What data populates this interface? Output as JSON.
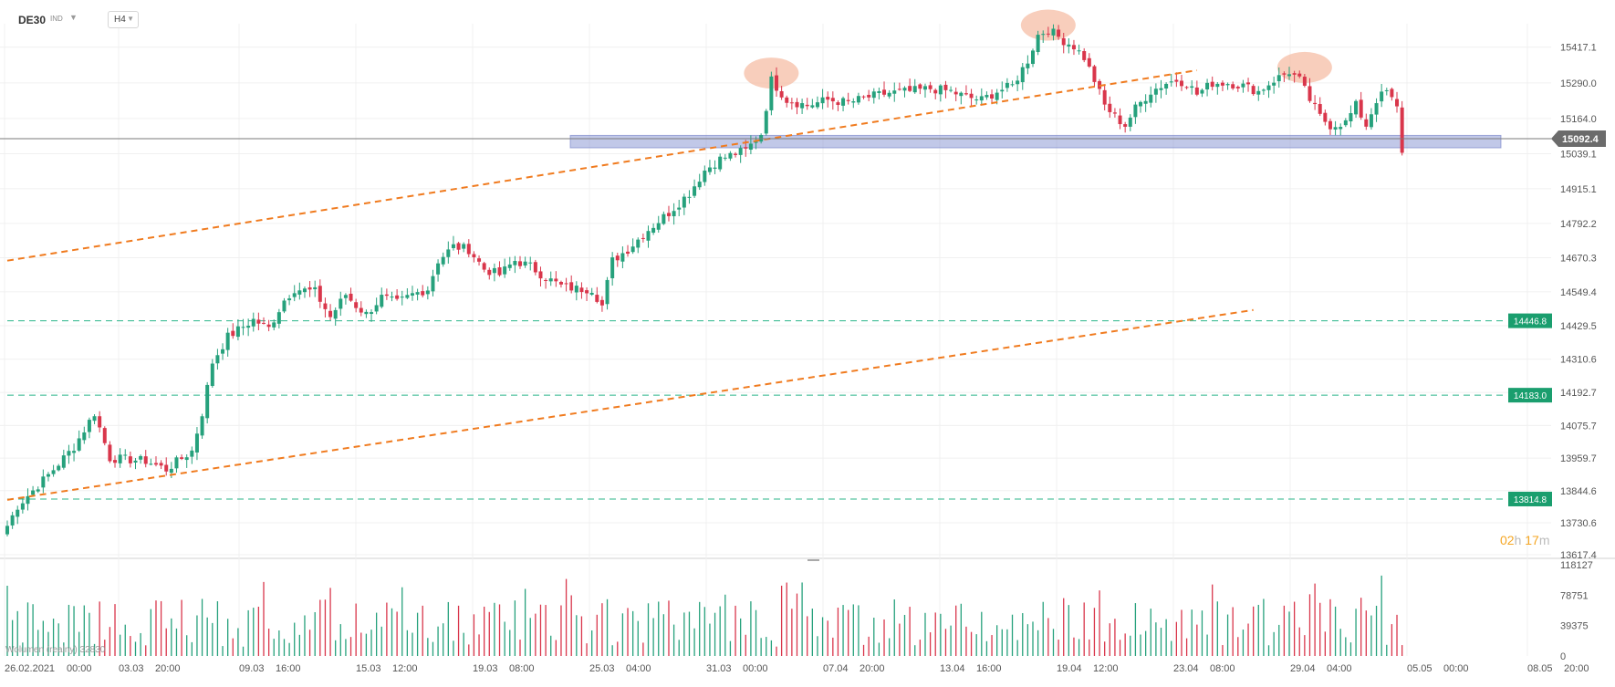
{
  "header": {
    "symbol": "DE30",
    "market_tag": "IND",
    "timeframe": "H4"
  },
  "countdown": {
    "hours": "02",
    "h_unit": "h",
    "minutes": "17",
    "m_unit": "m"
  },
  "volume_legend": "Wolumen (realny) 32830",
  "colors": {
    "up": "#26a17c",
    "down": "#d9364b",
    "trendline": "#f07b1f",
    "support_zone": "#8e9ad6",
    "horizontal_level": "#2bb58a",
    "highlight_circle": "#f5b9a0",
    "current_price_label": "#6b6b6b"
  },
  "chart_data": [
    {
      "type": "candlestick",
      "title": "DE30",
      "timeframe": "H4",
      "x_tick_labels": [
        "26.02.2021",
        "00:00",
        "03.03",
        "20:00",
        "09.03",
        "16:00",
        "15.03",
        "12:00",
        "19.03",
        "08:00",
        "25.03",
        "04:00",
        "31.03",
        "00:00",
        "07.04",
        "20:00",
        "13.04",
        "16:00",
        "19.04",
        "12:00",
        "23.04",
        "08:00",
        "29.04",
        "04:00",
        "05.05",
        "00:00",
        "08.05",
        "20:00"
      ],
      "y_tick_labels": [
        "15417.1",
        "15290.0",
        "15164.0",
        "15039.1",
        "14915.1",
        "14792.2",
        "14670.3",
        "14549.4",
        "14429.5",
        "14310.6",
        "14192.7",
        "14075.7",
        "13959.7",
        "13844.6",
        "13730.6",
        "13617.4"
      ],
      "ylim": [
        13617.4,
        15500
      ],
      "current_price": "15092.4",
      "price_levels": [
        "14446.8",
        "14183.0",
        "13814.8"
      ],
      "support_zone": [
        15060,
        15104
      ],
      "trendlines": [
        {
          "from": [
            0,
            14660
          ],
          "to": [
            232,
            15335
          ]
        },
        {
          "from": [
            0,
            13812
          ],
          "to": [
            243,
            14485
          ]
        }
      ],
      "highlight_circles": [
        [
          149,
          15325
        ],
        [
          203,
          15495
        ],
        [
          253,
          15345
        ]
      ],
      "anchors": [
        [
          0,
          13720
        ],
        [
          2,
          13790
        ],
        [
          8,
          13900
        ],
        [
          13,
          14000
        ],
        [
          17,
          14120
        ],
        [
          20,
          13960
        ],
        [
          27,
          13950
        ],
        [
          31,
          13920
        ],
        [
          36,
          13985
        ],
        [
          38,
          14120
        ],
        [
          40,
          14300
        ],
        [
          43,
          14390
        ],
        [
          48,
          14450
        ],
        [
          51,
          14420
        ],
        [
          54,
          14520
        ],
        [
          56,
          14560
        ],
        [
          60,
          14550
        ],
        [
          63,
          14460
        ],
        [
          66,
          14540
        ],
        [
          68,
          14500
        ],
        [
          70,
          14470
        ],
        [
          73,
          14530
        ],
        [
          76,
          14510
        ],
        [
          79,
          14540
        ],
        [
          82,
          14560
        ],
        [
          84,
          14660
        ],
        [
          87,
          14710
        ],
        [
          90,
          14700
        ],
        [
          93,
          14630
        ],
        [
          96,
          14610
        ],
        [
          99,
          14660
        ],
        [
          102,
          14640
        ],
        [
          105,
          14600
        ],
        [
          108,
          14570
        ],
        [
          111,
          14560
        ],
        [
          114,
          14560
        ],
        [
          116,
          14500
        ],
        [
          118,
          14660
        ],
        [
          121,
          14700
        ],
        [
          125,
          14770
        ],
        [
          129,
          14830
        ],
        [
          133,
          14900
        ],
        [
          136,
          14980
        ],
        [
          139,
          15020
        ],
        [
          142,
          15040
        ],
        [
          144,
          15050
        ],
        [
          147,
          15110
        ],
        [
          149,
          15300
        ],
        [
          152,
          15230
        ],
        [
          156,
          15210
        ],
        [
          160,
          15230
        ],
        [
          164,
          15220
        ],
        [
          168,
          15240
        ],
        [
          172,
          15255
        ],
        [
          176,
          15260
        ],
        [
          180,
          15270
        ],
        [
          184,
          15260
        ],
        [
          187,
          15240
        ],
        [
          190,
          15230
        ],
        [
          193,
          15260
        ],
        [
          196,
          15280
        ],
        [
          199,
          15370
        ],
        [
          201,
          15460
        ],
        [
          203,
          15480
        ],
        [
          206,
          15440
        ],
        [
          208,
          15420
        ],
        [
          210,
          15380
        ],
        [
          212,
          15300
        ],
        [
          214,
          15210
        ],
        [
          216,
          15170
        ],
        [
          218,
          15140
        ],
        [
          220,
          15200
        ],
        [
          223,
          15260
        ],
        [
          226,
          15290
        ],
        [
          228,
          15300
        ],
        [
          230,
          15290
        ],
        [
          232,
          15250
        ],
        [
          235,
          15290
        ],
        [
          238,
          15290
        ],
        [
          241,
          15280
        ],
        [
          244,
          15260
        ],
        [
          247,
          15300
        ],
        [
          250,
          15330
        ],
        [
          252,
          15300
        ],
        [
          254,
          15230
        ],
        [
          256,
          15170
        ],
        [
          258,
          15140
        ],
        [
          261,
          15150
        ],
        [
          263,
          15210
        ],
        [
          265,
          15140
        ],
        [
          267,
          15230
        ],
        [
          269,
          15260
        ],
        [
          271,
          15200
        ],
        [
          272,
          15050
        ]
      ]
    },
    {
      "type": "bar",
      "title": "Wolumen (realny)",
      "value_label": "32830",
      "y_tick_labels": [
        "118127",
        "78751",
        "39375",
        "0"
      ],
      "ylim": [
        0,
        118127
      ]
    }
  ]
}
